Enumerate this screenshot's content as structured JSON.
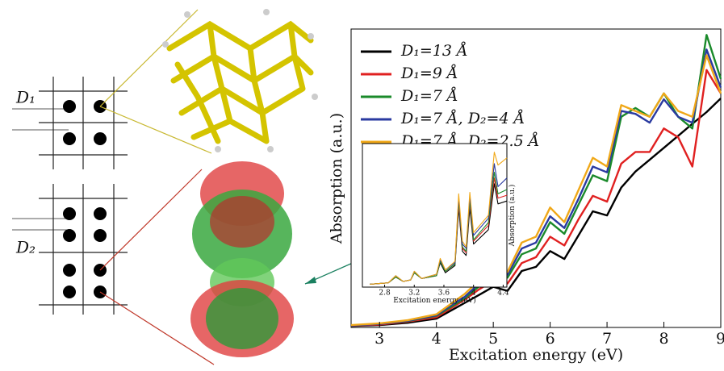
{
  "chart_data": [
    {
      "type": "line",
      "xlabel": "Excitation energy (eV)",
      "ylabel": "Absorption (a.u.)",
      "x": [
        2.5,
        3,
        3.5,
        4,
        4.25,
        4.5,
        4.75,
        5,
        5.25,
        5.5,
        5.75,
        6,
        6.25,
        6.5,
        6.75,
        7,
        7.25,
        7.5,
        7.75,
        8,
        8.25,
        8.5,
        8.75,
        9
      ],
      "series": [
        {
          "name": "D₁=13 Å",
          "color": "#000000",
          "values": [
            0.005,
            0.008,
            0.016,
            0.03,
            0.057,
            0.084,
            0.111,
            0.139,
            0.125,
            0.193,
            0.207,
            0.261,
            0.234,
            0.315,
            0.397,
            0.383,
            0.478,
            0.533,
            0.573,
            0.614,
            0.655,
            0.696,
            0.736,
            0.783
          ]
        },
        {
          "name": "D₁=9 Å",
          "color": "#e02020",
          "values": [
            0.006,
            0.01,
            0.02,
            0.035,
            0.065,
            0.095,
            0.13,
            0.16,
            0.15,
            0.22,
            0.24,
            0.31,
            0.28,
            0.37,
            0.45,
            0.43,
            0.56,
            0.6,
            0.6,
            0.68,
            0.65,
            0.55,
            0.88,
            0.8
          ]
        },
        {
          "name": "D₁=7 Å",
          "color": "#1a8a2a",
          "values": [
            0.007,
            0.012,
            0.022,
            0.04,
            0.07,
            0.1,
            0.14,
            0.18,
            0.17,
            0.25,
            0.27,
            0.36,
            0.32,
            0.42,
            0.52,
            0.5,
            0.72,
            0.75,
            0.72,
            0.8,
            0.72,
            0.68,
            1.0,
            0.85
          ]
        },
        {
          "name": "D₁=7 Å, D₂=4 Å",
          "color": "#2a3aa0",
          "values": [
            0.007,
            0.012,
            0.023,
            0.042,
            0.075,
            0.105,
            0.15,
            0.19,
            0.18,
            0.27,
            0.29,
            0.38,
            0.34,
            0.44,
            0.55,
            0.53,
            0.74,
            0.73,
            0.7,
            0.78,
            0.72,
            0.7,
            0.95,
            0.82
          ]
        },
        {
          "name": "D₁=7 Å, D₂=2.5 Å",
          "color": "#f0a818",
          "values": [
            0.008,
            0.014,
            0.025,
            0.045,
            0.08,
            0.115,
            0.16,
            0.2,
            0.19,
            0.29,
            0.31,
            0.41,
            0.36,
            0.47,
            0.58,
            0.55,
            0.76,
            0.74,
            0.72,
            0.8,
            0.74,
            0.72,
            0.93,
            0.8
          ]
        }
      ],
      "xlim": [
        2.5,
        9
      ],
      "xticks": [
        3,
        4,
        5,
        6,
        7,
        8,
        9
      ],
      "ylim": [
        0,
        1.02
      ],
      "legend": "upper left"
    },
    {
      "type": "line",
      "xlabel": "Excitation energy (eV)",
      "ylabel": "Absorption (a.u.)",
      "x": [
        2.6,
        2.85,
        2.95,
        3.05,
        3.15,
        3.2,
        3.3,
        3.5,
        3.55,
        3.62,
        3.75,
        3.8,
        3.85,
        3.9,
        3.95,
        4.0,
        4.2,
        4.28,
        4.33,
        4.45
      ],
      "series": [
        {
          "color": "#000000",
          "values": [
            0.02,
            0.03,
            0.07,
            0.04,
            0.05,
            0.1,
            0.06,
            0.08,
            0.17,
            0.1,
            0.15,
            0.55,
            0.25,
            0.22,
            0.55,
            0.3,
            0.4,
            0.72,
            0.58,
            0.6
          ]
        },
        {
          "color": "#e02020",
          "values": [
            0.02,
            0.03,
            0.07,
            0.04,
            0.05,
            0.1,
            0.06,
            0.08,
            0.18,
            0.11,
            0.16,
            0.58,
            0.27,
            0.24,
            0.58,
            0.32,
            0.43,
            0.76,
            0.62,
            0.64
          ]
        },
        {
          "color": "#1a8a2a",
          "values": [
            0.02,
            0.03,
            0.07,
            0.04,
            0.05,
            0.1,
            0.06,
            0.08,
            0.18,
            0.11,
            0.16,
            0.6,
            0.28,
            0.25,
            0.6,
            0.33,
            0.45,
            0.8,
            0.65,
            0.68
          ]
        },
        {
          "color": "#2a3aa0",
          "values": [
            0.02,
            0.03,
            0.08,
            0.04,
            0.05,
            0.11,
            0.06,
            0.09,
            0.19,
            0.12,
            0.17,
            0.62,
            0.3,
            0.27,
            0.63,
            0.36,
            0.48,
            0.86,
            0.7,
            0.76
          ]
        },
        {
          "color": "#f0a818",
          "values": [
            0.02,
            0.03,
            0.08,
            0.04,
            0.05,
            0.11,
            0.06,
            0.09,
            0.2,
            0.12,
            0.18,
            0.65,
            0.32,
            0.28,
            0.66,
            0.38,
            0.5,
            0.94,
            0.85,
            0.9
          ]
        }
      ],
      "xlim": [
        2.5,
        4.45
      ],
      "xticks": [
        2.8,
        3.2,
        3.6,
        4,
        4.4
      ],
      "ylim": [
        0,
        1
      ]
    }
  ],
  "diagram": {
    "labels": [
      "D₁",
      "D₂"
    ]
  }
}
